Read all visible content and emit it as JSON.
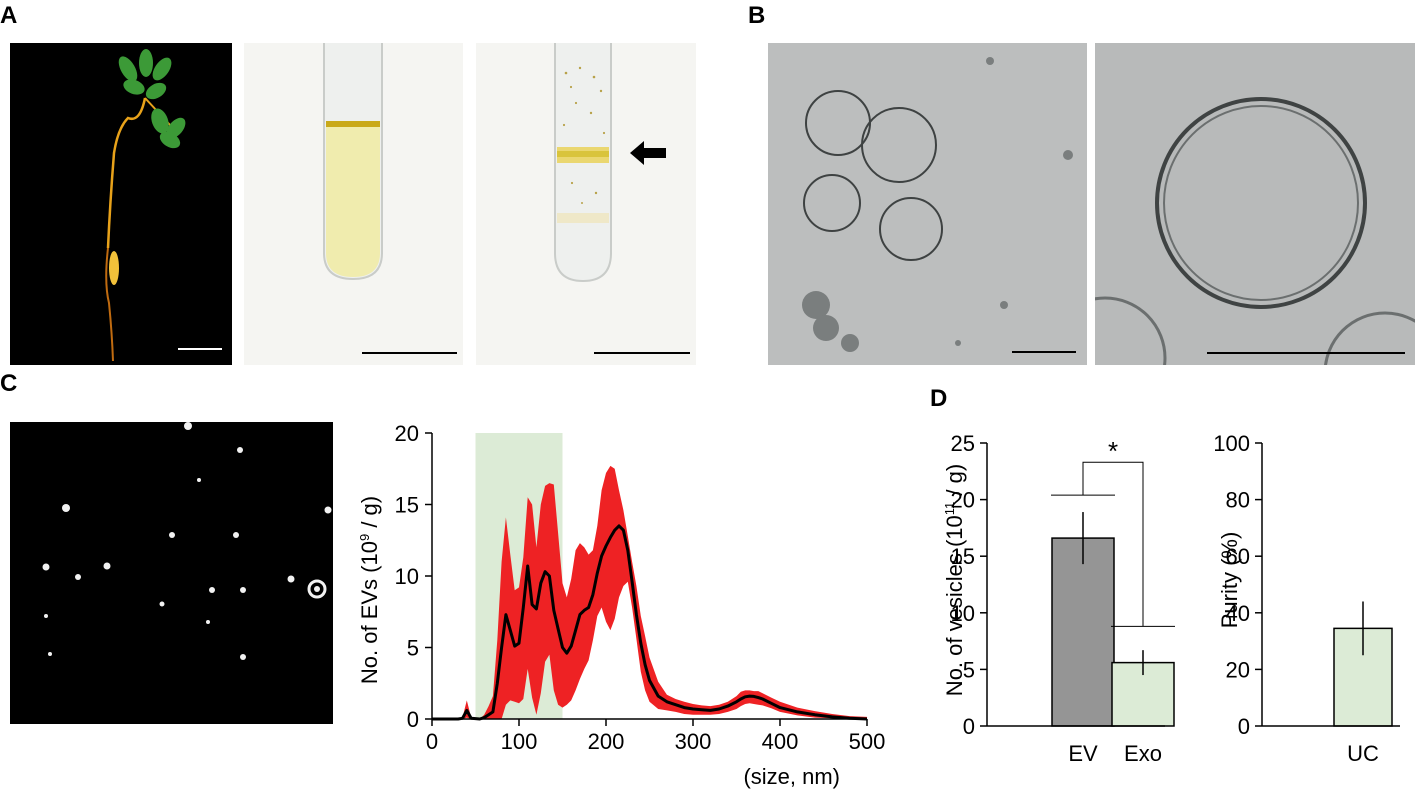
{
  "panels": {
    "a": "A",
    "b": "B",
    "c": "C",
    "d": "D"
  },
  "chart_c": {
    "ylabel_pre": "No. of EVs (10",
    "ylabel_exp": "9",
    "ylabel_post": " / g)",
    "xlabel": "(size, nm)",
    "yticks": [
      "0",
      "5",
      "10",
      "15",
      "20"
    ],
    "xticks": [
      "0",
      "100",
      "200",
      "300",
      "400",
      "500"
    ]
  },
  "chart_d1": {
    "ylabel_pre": "No. of vesicles (10",
    "ylabel_exp": "11",
    "ylabel_post": " / g)",
    "yticks": [
      "0",
      "5",
      "10",
      "15",
      "20",
      "25"
    ],
    "categories": [
      "EV",
      "Exo"
    ],
    "significance": "*"
  },
  "chart_d2": {
    "ylabel": "Purity (%)",
    "yticks": [
      "0",
      "20",
      "40",
      "60",
      "80",
      "100"
    ],
    "categories": [
      "UC"
    ]
  },
  "colors": {
    "band": "#ee2224",
    "mean_line": "#000000",
    "highlight": "#dcebd6",
    "bar_ev": "#959595",
    "bar_light": "#dcebd6"
  },
  "chart_data": [
    {
      "type": "area",
      "xlabel": "(size, nm)",
      "ylabel": "No. of EVs (10^9 / g)",
      "xlim": [
        0,
        500
      ],
      "ylim": [
        0,
        20
      ],
      "highlight_range": [
        50,
        150
      ],
      "x": [
        0,
        30,
        35,
        40,
        45,
        55,
        60,
        65,
        70,
        75,
        80,
        85,
        90,
        95,
        100,
        105,
        110,
        115,
        120,
        125,
        130,
        135,
        140,
        145,
        150,
        155,
        160,
        165,
        170,
        175,
        180,
        185,
        190,
        195,
        200,
        205,
        210,
        215,
        220,
        225,
        230,
        235,
        240,
        245,
        250,
        260,
        270,
        280,
        290,
        300,
        310,
        320,
        330,
        340,
        350,
        355,
        360,
        365,
        370,
        375,
        380,
        390,
        400,
        420,
        440,
        460,
        480,
        500
      ],
      "series": [
        {
          "values": [
            0,
            0,
            0.05,
            0.6,
            0.05,
            0,
            0.1,
            0.3,
            0.5,
            2.5,
            5,
            7.3,
            6.2,
            5.1,
            5.3,
            7.8,
            10.7,
            8.0,
            7.7,
            9.5,
            10.3,
            10.0,
            7.6,
            6.3,
            5.0,
            4.6,
            5.1,
            6.2,
            7.3,
            7.6,
            7.8,
            8.7,
            10.2,
            11.4,
            12.1,
            12.7,
            13.2,
            13.5,
            13.2,
            11.8,
            9.6,
            7.3,
            5.3,
            3.8,
            2.7,
            1.6,
            1.2,
            1.0,
            0.8,
            0.7,
            0.65,
            0.6,
            0.7,
            0.9,
            1.2,
            1.4,
            1.55,
            1.6,
            1.58,
            1.5,
            1.4,
            1.1,
            0.8,
            0.5,
            0.3,
            0.15,
            0.05,
            0
          ]
        },
        {
          "values": [
            0,
            0,
            0.1,
            1.3,
            0.1,
            0,
            0.3,
            0.9,
            1.6,
            5.5,
            11.0,
            14.1,
            11.5,
            9.0,
            9.2,
            11.3,
            15.5,
            15.0,
            12.0,
            15.0,
            16.3,
            16.5,
            16.4,
            13.0,
            9.5,
            8.5,
            9.8,
            11.8,
            12.3,
            12.0,
            11.5,
            11.8,
            13.5,
            16.0,
            17.2,
            17.7,
            17.5,
            16.0,
            14.6,
            12.8,
            11.0,
            9.3,
            7.2,
            5.8,
            4.3,
            2.6,
            1.7,
            1.4,
            1.2,
            1.05,
            0.95,
            0.9,
            1.0,
            1.2,
            1.6,
            1.9,
            2.0,
            2.0,
            1.95,
            1.95,
            1.8,
            1.5,
            1.2,
            0.8,
            0.55,
            0.35,
            0.2,
            0.15
          ]
        },
        {
          "values": [
            0,
            0,
            0,
            0.1,
            0,
            0,
            0,
            0,
            0,
            0,
            0,
            1.0,
            1.3,
            1.2,
            1.1,
            1.4,
            3.5,
            1.5,
            0.3,
            1.8,
            4.0,
            4.5,
            2.0,
            1.0,
            0.8,
            1.0,
            1.3,
            2.0,
            2.8,
            3.5,
            4.1,
            5.5,
            7.2,
            7.8,
            6.8,
            6.2,
            7.0,
            8.5,
            9.3,
            9.6,
            7.8,
            5.6,
            3.3,
            2.0,
            1.2,
            0.7,
            0.6,
            0.5,
            0.35,
            0.3,
            0.3,
            0.3,
            0.35,
            0.5,
            0.7,
            0.9,
            1.05,
            1.1,
            1.05,
            1.0,
            0.95,
            0.75,
            0.5,
            0.25,
            0.1,
            0.05,
            0,
            0
          ]
        }
      ]
    },
    {
      "type": "bar",
      "ylabel": "No. of vesicles (10^11 / g)",
      "ylim": [
        0,
        25
      ],
      "categories": [
        "EV",
        "Exo"
      ],
      "values": [
        16.6,
        5.6
      ],
      "errors": [
        2.3,
        1.1
      ],
      "significance": "*"
    },
    {
      "type": "bar",
      "ylabel": "Purity (%)",
      "ylim": [
        0,
        100
      ],
      "categories": [
        "UC"
      ],
      "values": [
        34.5
      ],
      "errors": [
        9.5
      ]
    }
  ]
}
